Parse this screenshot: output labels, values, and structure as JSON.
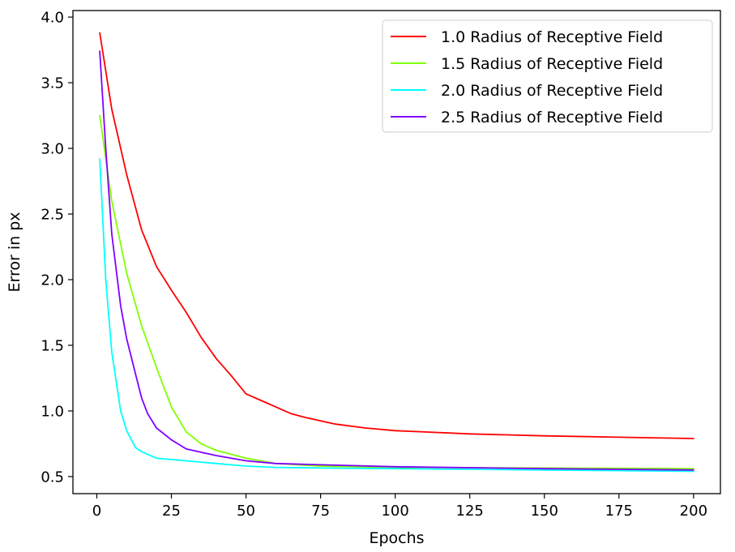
{
  "chart_data": {
    "type": "line",
    "title": "",
    "xlabel": "Epochs",
    "ylabel": "Error in px",
    "xlim": [
      -8,
      209
    ],
    "ylim": [
      0.37,
      4.05
    ],
    "xticks": [
      0,
      25,
      50,
      75,
      100,
      125,
      150,
      175,
      200
    ],
    "yticks": [
      0.5,
      1.0,
      1.5,
      2.0,
      2.5,
      3.0,
      3.5,
      4.0
    ],
    "ytick_labels": [
      "0.5",
      "1.0",
      "1.5",
      "2.0",
      "2.5",
      "3.0",
      "3.5",
      "4.0"
    ],
    "grid": false,
    "legend_position": "top-right",
    "series": [
      {
        "name": "1.0 Radius of Receptive Field",
        "color": "#ff0000",
        "x": [
          1,
          5,
          10,
          15,
          20,
          25,
          30,
          35,
          40,
          45,
          50,
          55,
          60,
          65,
          70,
          80,
          90,
          100,
          110,
          125,
          150,
          175,
          200
        ],
        "y": [
          3.88,
          3.3,
          2.8,
          2.38,
          2.1,
          1.92,
          1.75,
          1.56,
          1.4,
          1.27,
          1.13,
          1.08,
          1.03,
          0.98,
          0.95,
          0.9,
          0.87,
          0.85,
          0.84,
          0.825,
          0.81,
          0.8,
          0.79
        ]
      },
      {
        "name": "1.5 Radius of Receptive Field",
        "color": "#80ff00",
        "x": [
          1,
          5,
          10,
          15,
          20,
          25,
          30,
          35,
          40,
          45,
          50,
          60,
          75,
          100,
          150,
          200
        ],
        "y": [
          3.25,
          2.6,
          2.05,
          1.65,
          1.33,
          1.03,
          0.84,
          0.75,
          0.7,
          0.67,
          0.64,
          0.6,
          0.58,
          0.57,
          0.565,
          0.56
        ]
      },
      {
        "name": "2.0 Radius of Receptive Field",
        "color": "#00ffff",
        "x": [
          1,
          3,
          5,
          8,
          10,
          13,
          15,
          20,
          25,
          30,
          40,
          50,
          60,
          75,
          100,
          150,
          200
        ],
        "y": [
          2.92,
          2.0,
          1.45,
          1.0,
          0.85,
          0.72,
          0.69,
          0.64,
          0.63,
          0.62,
          0.6,
          0.58,
          0.57,
          0.565,
          0.56,
          0.55,
          0.54
        ]
      },
      {
        "name": "2.5 Radius of Receptive Field",
        "color": "#8000ff",
        "x": [
          1,
          3,
          5,
          8,
          10,
          13,
          15,
          17,
          20,
          25,
          30,
          40,
          50,
          60,
          75,
          100,
          150,
          200
        ],
        "y": [
          3.74,
          3.0,
          2.35,
          1.8,
          1.55,
          1.28,
          1.1,
          0.98,
          0.87,
          0.78,
          0.71,
          0.66,
          0.62,
          0.6,
          0.59,
          0.575,
          0.56,
          0.55
        ]
      }
    ]
  }
}
